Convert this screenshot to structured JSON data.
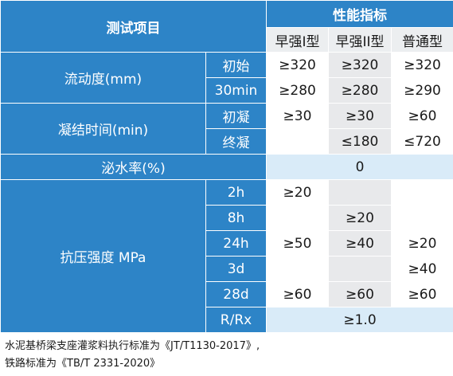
{
  "header": {
    "test_items": "测试项目",
    "performance": "性能指标",
    "types": [
      "早强I型",
      "早强II型",
      "普通型"
    ]
  },
  "rows": {
    "fluidity": {
      "label": "流动度(mm)",
      "initial": {
        "sub": "初始",
        "v": [
          "≥320",
          "≥320",
          "≥320"
        ]
      },
      "min30": {
        "sub": "30min",
        "v": [
          "≥280",
          "≥280",
          "≥290"
        ]
      }
    },
    "setting": {
      "label": "凝结时间(min)",
      "initial": {
        "sub": "初凝",
        "v": [
          "≥30",
          "≥30",
          "≥60"
        ]
      },
      "final": {
        "sub": "终凝",
        "v": [
          "",
          "≤180",
          "≤720"
        ]
      }
    },
    "bleeding": {
      "label": "泌水率(%)",
      "value": "0"
    },
    "strength": {
      "label": "抗压强度 MPa",
      "h2": {
        "sub": "2h",
        "v": [
          "≥20",
          "",
          ""
        ]
      },
      "h8": {
        "sub": "8h",
        "v": [
          "",
          "≥20",
          ""
        ]
      },
      "h24": {
        "sub": "24h",
        "v": [
          "≥50",
          "≥40",
          "≥20"
        ]
      },
      "d3": {
        "sub": "3d",
        "v": [
          "",
          "",
          "≥40"
        ]
      },
      "d28": {
        "sub": "28d",
        "v": [
          "≥60",
          "≥60",
          "≥60"
        ]
      }
    },
    "ratio": {
      "sub": "R/Rx",
      "value": "≥1.0"
    }
  },
  "notes": {
    "line1": "水泥基桥梁支座灌浆料执行标准为《JT/T1130-2017》,",
    "line2": "铁路标准为《TB/T 2331-2020》"
  }
}
